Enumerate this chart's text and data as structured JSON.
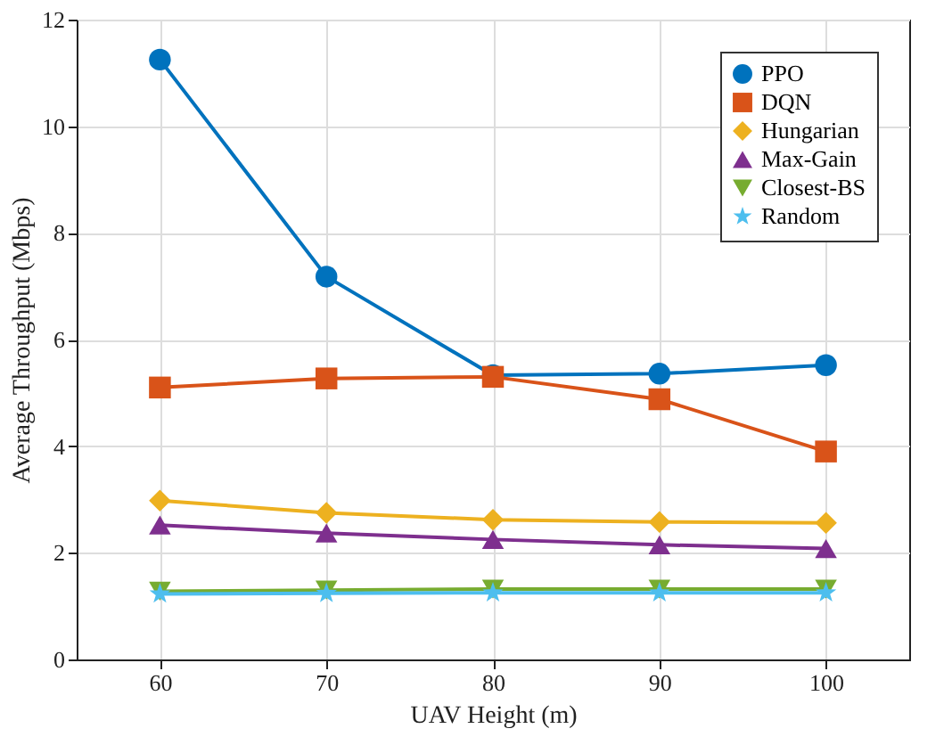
{
  "chart_data": {
    "type": "line",
    "xlabel": "UAV Height (m)",
    "ylabel": "Average Throughput (Mbps)",
    "x": [
      60,
      70,
      80,
      90,
      100
    ],
    "xlim": [
      55,
      105
    ],
    "xticks": [
      60,
      70,
      80,
      90,
      100
    ],
    "ylim": [
      0,
      12
    ],
    "yticks": [
      0,
      2,
      4,
      6,
      8,
      10,
      12
    ],
    "grid": true,
    "legend": "top right",
    "line_style": "solid",
    "series": [
      {
        "name": "PPO",
        "color": "#0072bd",
        "marker": "circle",
        "values": [
          11.25,
          7.18,
          5.33,
          5.36,
          5.52
        ]
      },
      {
        "name": "DQN",
        "color": "#d95319",
        "marker": "square",
        "values": [
          5.1,
          5.27,
          5.3,
          4.88,
          3.9
        ]
      },
      {
        "name": "Hungarian",
        "color": "#edb120",
        "marker": "diamond",
        "values": [
          2.98,
          2.75,
          2.62,
          2.58,
          2.56
        ]
      },
      {
        "name": "Max-Gain",
        "color": "#7e2f8e",
        "marker": "triangle",
        "values": [
          2.52,
          2.37,
          2.25,
          2.15,
          2.08
        ]
      },
      {
        "name": "Closest-BS",
        "color": "#77ac30",
        "marker": "triangle-down",
        "values": [
          1.28,
          1.3,
          1.32,
          1.32,
          1.32
        ]
      },
      {
        "name": "Random",
        "color": "#4dbeee",
        "marker": "star",
        "values": [
          1.23,
          1.24,
          1.25,
          1.25,
          1.25
        ]
      }
    ]
  }
}
